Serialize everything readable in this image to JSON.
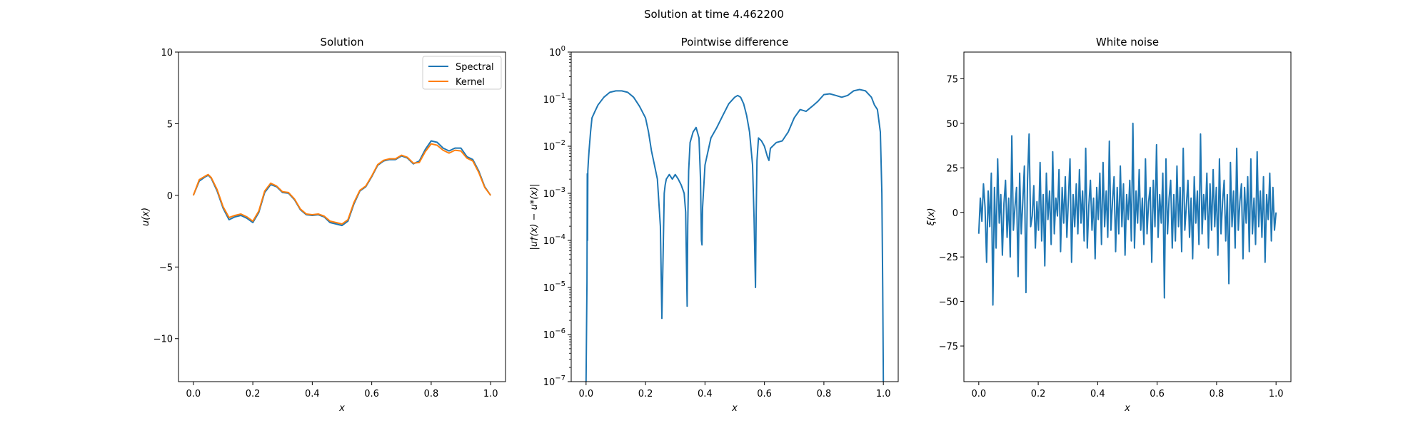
{
  "figure": {
    "suptitle": "Solution at time 4.462200"
  },
  "colors": {
    "spectral": "#1f77b4",
    "kernel": "#ff7f0e",
    "axis": "#000000",
    "legend_border": "#cccccc"
  },
  "chart_data": [
    {
      "type": "line",
      "title": "Solution",
      "xlabel": "x",
      "ylabel": "u(x)",
      "xlim": [
        -0.05,
        1.05
      ],
      "ylim": [
        -13.0,
        10.0
      ],
      "xticks": [
        0.0,
        0.2,
        0.4,
        0.6,
        0.8,
        1.0
      ],
      "xtick_labels": [
        "0.0",
        "0.2",
        "0.4",
        "0.6",
        "0.8",
        "1.0"
      ],
      "yticks": [
        10,
        5,
        0,
        -5,
        -10
      ],
      "ytick_labels": [
        "10",
        "5",
        "0",
        "−5",
        "−10"
      ],
      "legend": {
        "placement": "top-right",
        "entries": [
          "Spectral",
          "Kernel"
        ]
      },
      "grid": false,
      "series": [
        {
          "name": "Spectral",
          "x": [
            0.0,
            0.02,
            0.04,
            0.05,
            0.06,
            0.08,
            0.1,
            0.12,
            0.14,
            0.16,
            0.18,
            0.2,
            0.22,
            0.24,
            0.26,
            0.28,
            0.3,
            0.32,
            0.34,
            0.36,
            0.38,
            0.4,
            0.42,
            0.44,
            0.46,
            0.48,
            0.5,
            0.52,
            0.54,
            0.56,
            0.58,
            0.6,
            0.62,
            0.64,
            0.66,
            0.68,
            0.7,
            0.72,
            0.74,
            0.76,
            0.78,
            0.8,
            0.82,
            0.84,
            0.86,
            0.88,
            0.9,
            0.92,
            0.94,
            0.96,
            0.98,
            1.0
          ],
          "y": [
            0.0,
            1.0,
            1.3,
            1.4,
            1.2,
            0.3,
            -0.9,
            -1.7,
            -1.5,
            -1.4,
            -1.6,
            -1.9,
            -1.2,
            0.2,
            0.75,
            0.6,
            0.2,
            0.15,
            -0.3,
            -1.0,
            -1.35,
            -1.4,
            -1.35,
            -1.5,
            -1.9,
            -2.0,
            -2.1,
            -1.8,
            -0.6,
            0.3,
            0.6,
            1.3,
            2.1,
            2.4,
            2.5,
            2.5,
            2.75,
            2.6,
            2.2,
            2.4,
            3.2,
            3.8,
            3.7,
            3.3,
            3.1,
            3.3,
            3.3,
            2.7,
            2.5,
            1.7,
            0.6,
            0.0
          ]
        },
        {
          "name": "Kernel",
          "x": [
            0.0,
            0.02,
            0.04,
            0.05,
            0.06,
            0.08,
            0.1,
            0.12,
            0.14,
            0.16,
            0.18,
            0.2,
            0.22,
            0.24,
            0.26,
            0.28,
            0.3,
            0.32,
            0.34,
            0.36,
            0.38,
            0.4,
            0.42,
            0.44,
            0.46,
            0.48,
            0.5,
            0.52,
            0.54,
            0.56,
            0.58,
            0.6,
            0.62,
            0.64,
            0.66,
            0.68,
            0.7,
            0.72,
            0.74,
            0.76,
            0.78,
            0.8,
            0.82,
            0.84,
            0.86,
            0.88,
            0.9,
            0.92,
            0.94,
            0.96,
            0.98,
            1.0
          ],
          "y": [
            0.0,
            1.1,
            1.35,
            1.45,
            1.25,
            0.4,
            -0.8,
            -1.55,
            -1.4,
            -1.3,
            -1.5,
            -1.8,
            -1.1,
            0.3,
            0.85,
            0.65,
            0.25,
            0.2,
            -0.25,
            -0.95,
            -1.3,
            -1.35,
            -1.3,
            -1.45,
            -1.8,
            -1.9,
            -2.0,
            -1.7,
            -0.5,
            0.35,
            0.65,
            1.35,
            2.15,
            2.45,
            2.55,
            2.55,
            2.8,
            2.65,
            2.25,
            2.3,
            3.05,
            3.6,
            3.5,
            3.15,
            2.95,
            3.15,
            3.1,
            2.6,
            2.4,
            1.6,
            0.55,
            0.0
          ]
        }
      ]
    },
    {
      "type": "line",
      "title": "Pointwise difference",
      "xlabel": "x",
      "ylabel": "|u†(x) − u*(x)|",
      "yscale": "log",
      "xlim": [
        -0.05,
        1.05
      ],
      "ylim": [
        1e-07,
        1.0
      ],
      "xticks": [
        0.0,
        0.2,
        0.4,
        0.6,
        0.8,
        1.0
      ],
      "xtick_labels": [
        "0.0",
        "0.2",
        "0.4",
        "0.6",
        "0.8",
        "1.0"
      ],
      "ytick_exponents": [
        0,
        -1,
        -2,
        -3,
        -4,
        -5,
        -6,
        -7
      ],
      "grid": false,
      "series": [
        {
          "name": "",
          "x": [
            0.0,
            0.003,
            0.004,
            0.005,
            0.006,
            0.008,
            0.01,
            0.015,
            0.02,
            0.03,
            0.04,
            0.06,
            0.08,
            0.1,
            0.12,
            0.14,
            0.16,
            0.18,
            0.2,
            0.21,
            0.22,
            0.23,
            0.24,
            0.25,
            0.255,
            0.26,
            0.263,
            0.266,
            0.27,
            0.28,
            0.29,
            0.3,
            0.31,
            0.32,
            0.33,
            0.335,
            0.34,
            0.342,
            0.345,
            0.35,
            0.36,
            0.37,
            0.38,
            0.385,
            0.388,
            0.39,
            0.392,
            0.4,
            0.42,
            0.44,
            0.46,
            0.48,
            0.5,
            0.51,
            0.52,
            0.53,
            0.54,
            0.55,
            0.56,
            0.565,
            0.57,
            0.572,
            0.575,
            0.58,
            0.59,
            0.6,
            0.61,
            0.615,
            0.62,
            0.64,
            0.66,
            0.68,
            0.7,
            0.72,
            0.74,
            0.76,
            0.78,
            0.8,
            0.82,
            0.84,
            0.86,
            0.88,
            0.9,
            0.92,
            0.94,
            0.96,
            0.97,
            0.98,
            0.99,
            0.995,
            0.998,
            1.0
          ],
          "y": [
            1e-07,
            1.3e-05,
            0.0026,
            0.0001,
            0.003,
            0.005,
            0.008,
            0.02,
            0.04,
            0.055,
            0.075,
            0.11,
            0.14,
            0.15,
            0.15,
            0.14,
            0.11,
            0.07,
            0.04,
            0.02,
            0.008,
            0.004,
            0.002,
            0.0002,
            2.2e-06,
            0.0001,
            0.001,
            0.0015,
            0.002,
            0.0025,
            0.002,
            0.0025,
            0.002,
            0.0015,
            0.001,
            0.0004,
            4e-06,
            0.0002,
            0.003,
            0.012,
            0.02,
            0.025,
            0.015,
            0.002,
            0.0001,
            8e-05,
            0.0005,
            0.004,
            0.015,
            0.025,
            0.045,
            0.08,
            0.11,
            0.12,
            0.11,
            0.08,
            0.045,
            0.02,
            0.004,
            0.0003,
            1e-05,
            0.0003,
            0.005,
            0.015,
            0.013,
            0.01,
            0.006,
            0.005,
            0.009,
            0.012,
            0.013,
            0.02,
            0.04,
            0.06,
            0.055,
            0.07,
            0.09,
            0.125,
            0.13,
            0.12,
            0.11,
            0.12,
            0.15,
            0.16,
            0.15,
            0.11,
            0.075,
            0.06,
            0.02,
            0.001,
            1e-05,
            1e-07
          ]
        }
      ]
    },
    {
      "type": "line",
      "title": "White noise",
      "xlabel": "x",
      "ylabel": "ξ(x)",
      "xlim": [
        -0.05,
        1.05
      ],
      "ylim": [
        -95.0,
        90.0
      ],
      "xticks": [
        0.0,
        0.2,
        0.4,
        0.6,
        0.8,
        1.0
      ],
      "xtick_labels": [
        "0.0",
        "0.2",
        "0.4",
        "0.6",
        "0.8",
        "1.0"
      ],
      "yticks": [
        75,
        50,
        25,
        0,
        -25,
        -50,
        -75
      ],
      "ytick_labels": [
        "75",
        "50",
        "25",
        "0",
        "−25",
        "−50",
        "−75"
      ],
      "grid": false,
      "series": [
        {
          "name": "",
          "x_range": [
            0.0,
            1.0
          ],
          "y": [
            -12,
            8,
            -5,
            16,
            3,
            -28,
            12,
            -8,
            22,
            -52,
            14,
            -20,
            30,
            -6,
            10,
            -24,
            5,
            18,
            -14,
            8,
            -25,
            43,
            -10,
            3,
            14,
            -36,
            22,
            -12,
            6,
            26,
            -45,
            18,
            44,
            -8,
            -2,
            15,
            -20,
            6,
            -10,
            28,
            -16,
            10,
            -30,
            22,
            -4,
            12,
            -18,
            34,
            -12,
            8,
            -2,
            24,
            -22,
            14,
            -6,
            20,
            -14,
            8,
            30,
            -28,
            10,
            -8,
            16,
            -12,
            24,
            -6,
            12,
            -16,
            36,
            -20,
            4,
            18,
            -10,
            8,
            -26,
            14,
            -4,
            22,
            -18,
            28,
            -8,
            12,
            -14,
            40,
            -10,
            6,
            20,
            -22,
            14,
            -12,
            26,
            -8,
            16,
            -24,
            10,
            -4,
            18,
            -16,
            50,
            -20,
            12,
            -6,
            24,
            -10,
            8,
            -18,
            30,
            -12,
            6,
            14,
            -28,
            18,
            -8,
            38,
            -14,
            10,
            -6,
            22,
            -48,
            30,
            -12,
            8,
            18,
            -20,
            10,
            -16,
            26,
            -8,
            14,
            -22,
            36,
            -10,
            4,
            18,
            -14,
            8,
            -26,
            20,
            -6,
            12,
            -18,
            44,
            -12,
            10,
            -4,
            22,
            -20,
            16,
            -10,
            24,
            -8,
            14,
            -24,
            30,
            -12,
            6,
            18,
            -16,
            10,
            -40,
            28,
            -8,
            12,
            -20,
            36,
            -10,
            6,
            16,
            -26,
            14,
            -6,
            20,
            -22,
            30,
            -12,
            8,
            -18,
            34,
            -8,
            12,
            -14,
            20,
            -28,
            10,
            -4,
            22,
            -16,
            14,
            -10,
            0
          ]
        }
      ]
    }
  ]
}
